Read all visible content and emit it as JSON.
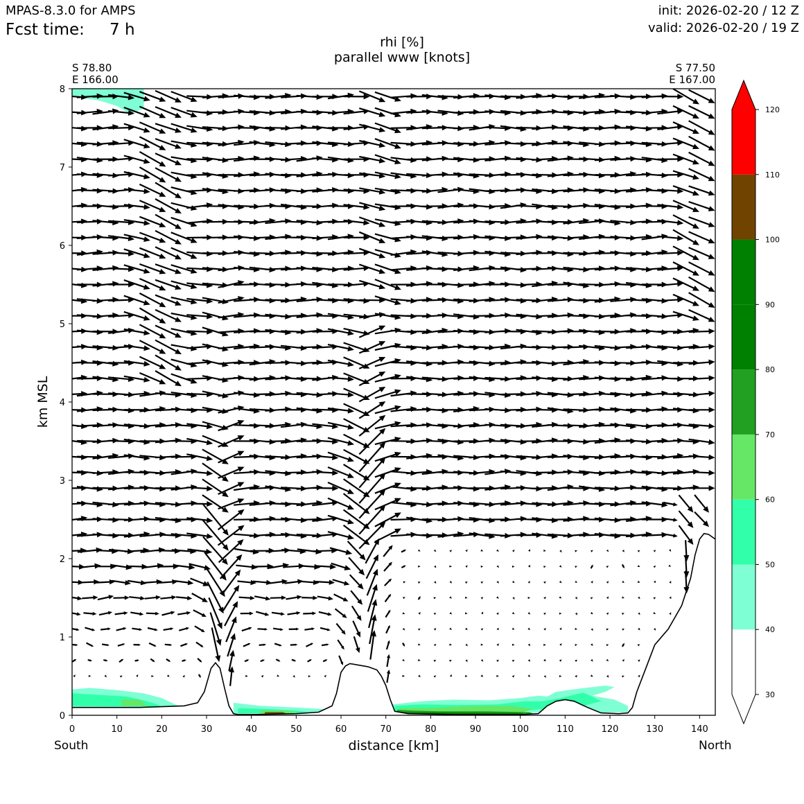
{
  "header": {
    "model": "MPAS-8.3.0 for AMPS",
    "fcst_label": "Fcst time:",
    "fcst_value": "7 h",
    "init": "init: 2026-02-20 / 12 Z",
    "valid": "valid: 2026-02-20 / 19 Z"
  },
  "chart_data": {
    "type": "cross-section",
    "title": "rhi [%]",
    "subtitle": "parallel www [knots]",
    "xlabel": "distance [km]",
    "ylabel": "km MSL",
    "xlim": [
      0,
      143.5
    ],
    "ylim": [
      0,
      8
    ],
    "xticks": [
      0,
      10,
      20,
      30,
      40,
      50,
      60,
      70,
      80,
      90,
      100,
      110,
      120,
      130,
      140
    ],
    "yticks": [
      0,
      1,
      2,
      3,
      4,
      5,
      6,
      7,
      8
    ],
    "left_end": {
      "lat": "S 78.80",
      "lon": "E 166.00",
      "label": "South"
    },
    "right_end": {
      "lat": "S 77.50",
      "lon": "E 167.00",
      "label": "North"
    },
    "terrain": {
      "x": [
        0,
        15,
        25,
        28,
        29.5,
        31,
        32,
        33,
        34,
        35,
        36,
        37,
        40,
        50,
        55,
        58,
        59,
        60,
        61,
        62,
        64,
        66,
        68,
        69,
        70,
        71,
        72,
        75,
        85,
        100,
        104,
        106,
        108,
        110,
        112,
        115,
        118,
        122,
        124,
        125,
        126,
        128,
        130,
        133,
        136,
        138,
        139,
        140,
        141,
        142,
        143.5
      ],
      "height_km": [
        0.1,
        0.1,
        0.12,
        0.16,
        0.3,
        0.6,
        0.67,
        0.6,
        0.35,
        0.12,
        0.02,
        0.01,
        0.01,
        0.02,
        0.04,
        0.12,
        0.28,
        0.55,
        0.63,
        0.66,
        0.64,
        0.62,
        0.58,
        0.5,
        0.38,
        0.2,
        0.05,
        0.02,
        0.01,
        0.01,
        0.02,
        0.12,
        0.18,
        0.2,
        0.18,
        0.1,
        0.03,
        0.02,
        0.03,
        0.1,
        0.3,
        0.6,
        0.9,
        1.1,
        1.4,
        1.75,
        2.05,
        2.25,
        2.32,
        2.31,
        2.25
      ]
    },
    "rhi_patches": [
      {
        "level": "40-50",
        "points": [
          [
            0,
            8.0
          ],
          [
            16,
            8.0
          ],
          [
            16,
            7.75
          ],
          [
            13,
            7.68
          ],
          [
            10,
            7.78
          ],
          [
            6,
            7.85
          ],
          [
            0,
            7.9
          ]
        ]
      },
      {
        "level": "40-50",
        "points": [
          [
            0,
            0.1
          ],
          [
            0,
            0.33
          ],
          [
            4,
            0.35
          ],
          [
            10,
            0.32
          ],
          [
            16,
            0.28
          ],
          [
            20,
            0.22
          ],
          [
            23,
            0.14
          ],
          [
            25,
            0.1
          ]
        ]
      },
      {
        "level": "50-60",
        "points": [
          [
            0,
            0.12
          ],
          [
            0,
            0.28
          ],
          [
            6,
            0.26
          ],
          [
            12,
            0.24
          ],
          [
            16,
            0.19
          ],
          [
            19,
            0.14
          ],
          [
            20,
            0.11
          ]
        ]
      },
      {
        "level": "60-70",
        "points": [
          [
            11,
            0.12
          ],
          [
            11,
            0.2
          ],
          [
            15,
            0.2
          ],
          [
            17,
            0.12
          ]
        ]
      },
      {
        "level": "40-50",
        "points": [
          [
            36,
            0.02
          ],
          [
            36,
            0.16
          ],
          [
            42,
            0.12
          ],
          [
            50,
            0.1
          ],
          [
            56,
            0.08
          ],
          [
            57,
            0.03
          ]
        ]
      },
      {
        "level": "50-60",
        "points": [
          [
            37,
            0.02
          ],
          [
            37,
            0.09
          ],
          [
            44,
            0.08
          ],
          [
            50,
            0.06
          ],
          [
            54,
            0.03
          ]
        ]
      },
      {
        "level": "60-70",
        "points": [
          [
            42,
            0.02
          ],
          [
            42,
            0.06
          ],
          [
            48,
            0.06
          ],
          [
            51,
            0.02
          ]
        ]
      },
      {
        "level": "100-110",
        "points": [
          [
            43,
            0.02
          ],
          [
            43,
            0.04
          ],
          [
            47,
            0.04
          ],
          [
            48,
            0.02
          ]
        ]
      },
      {
        "level": "40-50",
        "points": [
          [
            72,
            0.02
          ],
          [
            71.5,
            0.14
          ],
          [
            78,
            0.18
          ],
          [
            85,
            0.2
          ],
          [
            93,
            0.19
          ],
          [
            100,
            0.22
          ],
          [
            104,
            0.25
          ],
          [
            106,
            0.24
          ],
          [
            108,
            0.3
          ],
          [
            113,
            0.34
          ],
          [
            119,
            0.38
          ],
          [
            121,
            0.36
          ],
          [
            119,
            0.3
          ],
          [
            116,
            0.25
          ],
          [
            121,
            0.2
          ],
          [
            124,
            0.12
          ],
          [
            124,
            0.04
          ]
        ]
      },
      {
        "level": "50-60",
        "points": [
          [
            72,
            0.03
          ],
          [
            72,
            0.12
          ],
          [
            78,
            0.14
          ],
          [
            86,
            0.13
          ],
          [
            95,
            0.14
          ],
          [
            101,
            0.18
          ],
          [
            105,
            0.18
          ],
          [
            109,
            0.22
          ],
          [
            114,
            0.29
          ],
          [
            116,
            0.24
          ],
          [
            118,
            0.18
          ],
          [
            114,
            0.12
          ],
          [
            105,
            0.08
          ],
          [
            100,
            0.05
          ]
        ]
      },
      {
        "level": "60-70",
        "points": [
          [
            73,
            0.02
          ],
          [
            73,
            0.09
          ],
          [
            82,
            0.1
          ],
          [
            90,
            0.12
          ],
          [
            98,
            0.12
          ],
          [
            103,
            0.08
          ],
          [
            100,
            0.03
          ]
        ]
      },
      {
        "level": "70-80",
        "points": [
          [
            72.5,
            0.02
          ],
          [
            72.5,
            0.07
          ],
          [
            76,
            0.06
          ],
          [
            82,
            0.05
          ],
          [
            92,
            0.05
          ],
          [
            102,
            0.04
          ],
          [
            103,
            0.02
          ]
        ]
      },
      {
        "level": "80-90",
        "points": [
          [
            74,
            0.015
          ],
          [
            74,
            0.04
          ],
          [
            88,
            0.035
          ],
          [
            100,
            0.03
          ],
          [
            101,
            0.015
          ]
        ]
      }
    ],
    "colorbar": {
      "ticks": [
        30,
        40,
        50,
        60,
        70,
        80,
        90,
        100,
        110,
        120
      ],
      "levels": [
        {
          "from": 30,
          "to": 40,
          "color": "#ffffff"
        },
        {
          "from": 40,
          "to": 50,
          "color": "#7fffd4"
        },
        {
          "from": 50,
          "to": 60,
          "color": "#32ffaa"
        },
        {
          "from": 60,
          "to": 70,
          "color": "#66e766"
        },
        {
          "from": 70,
          "to": 80,
          "color": "#21a021"
        },
        {
          "from": 80,
          "to": 90,
          "color": "#008000"
        },
        {
          "from": 90,
          "to": 100,
          "color": "#008000"
        },
        {
          "from": 100,
          "to": 110,
          "color": "#704400"
        },
        {
          "from": 110,
          "to": 120,
          "color": "#ff0000"
        }
      ],
      "extend": "both",
      "over_color": "#ff0000",
      "under_color": "#ffffff"
    },
    "wind_vectors": {
      "units": "knots",
      "x_step_km": 3.5,
      "z_levels_km": [
        0.5,
        0.7,
        0.9,
        1.1,
        1.3,
        1.5,
        1.7,
        1.9,
        2.1,
        2.3,
        2.5,
        2.7,
        2.9,
        3.1,
        3.3,
        3.5,
        3.7,
        3.9,
        4.1,
        4.3,
        4.5,
        4.7,
        4.9,
        5.1,
        5.3,
        5.5,
        5.7,
        5.9,
        6.1,
        6.3,
        6.5,
        6.7,
        6.9,
        7.1,
        7.3,
        7.5,
        7.7,
        7.9
      ]
    }
  }
}
